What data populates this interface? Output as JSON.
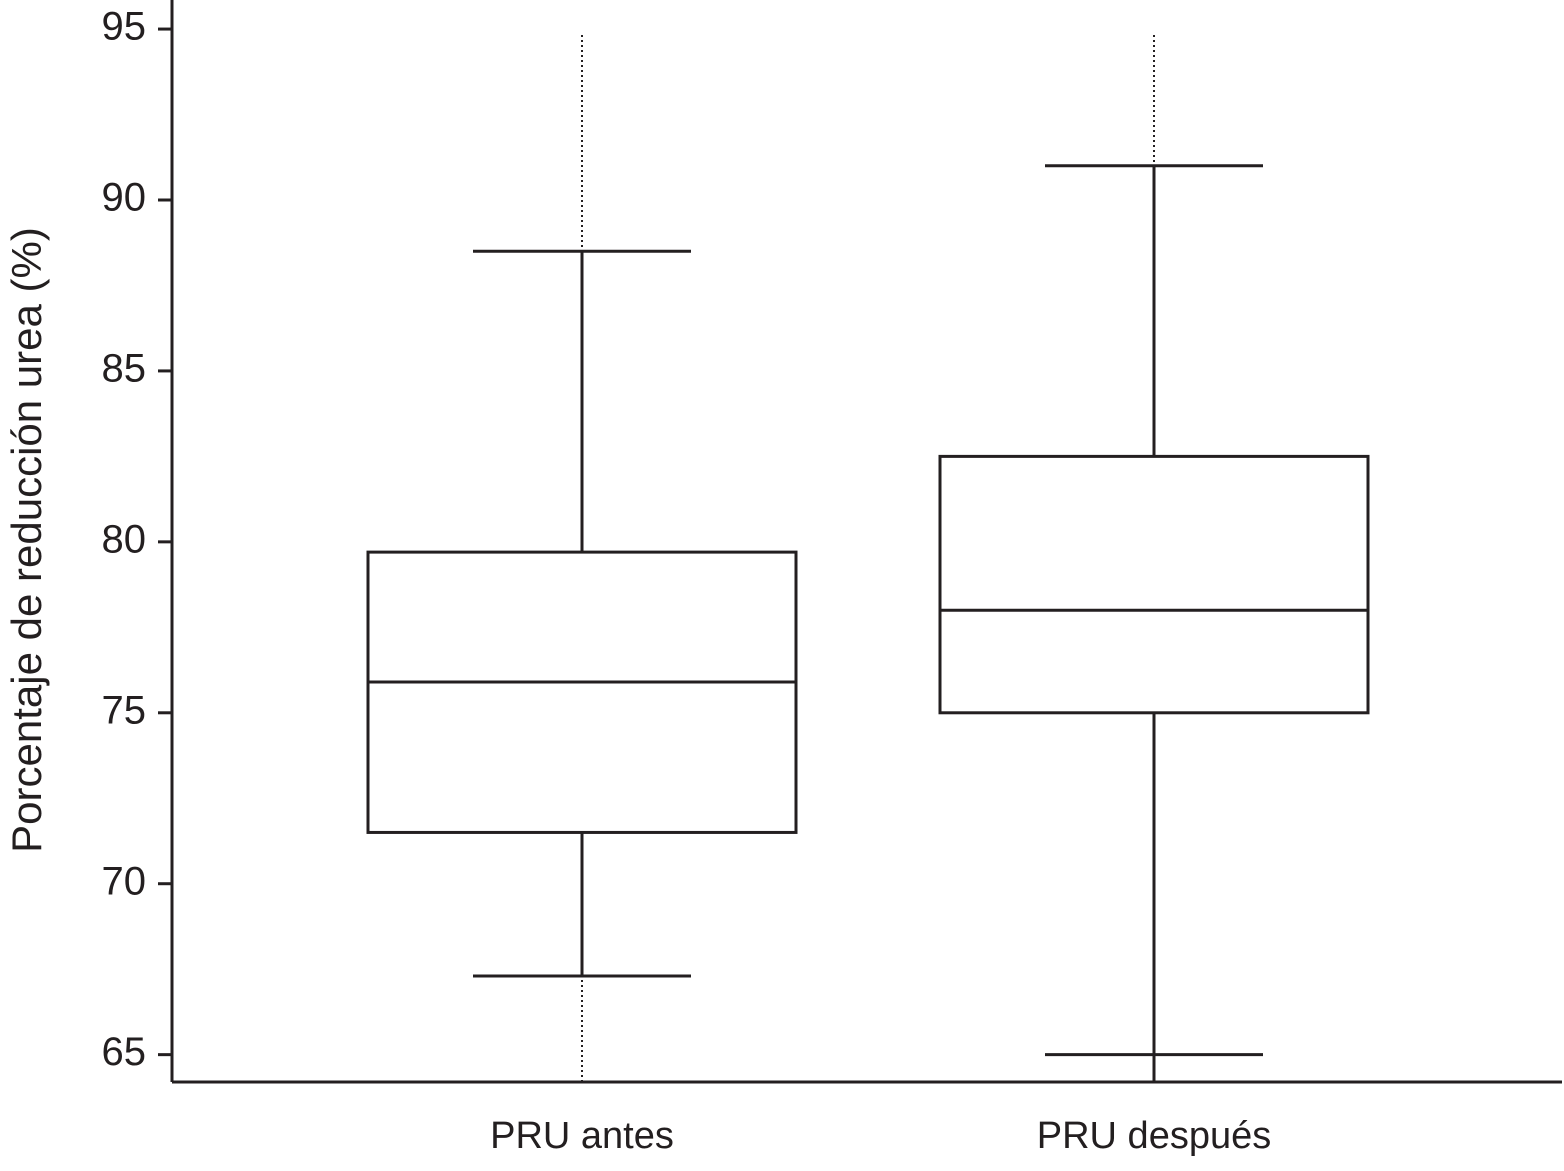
{
  "chart_data": {
    "type": "box",
    "y_label": "Porcentaje de reducción urea (%)",
    "categories": [
      "PRU antes",
      "PRU después"
    ],
    "boxes": [
      {
        "min": 67.3,
        "q1": 71.5,
        "median": 75.9,
        "q3": 79.7,
        "max": 88.5
      },
      {
        "min": 65,
        "q1": 75,
        "median": 78,
        "q3": 82.5,
        "max": 91
      }
    ],
    "color": "#231f20",
    "ylim": [
      64.2,
      95.85
    ],
    "yticks": [
      65,
      70,
      75,
      80,
      85,
      90,
      95
    ]
  }
}
